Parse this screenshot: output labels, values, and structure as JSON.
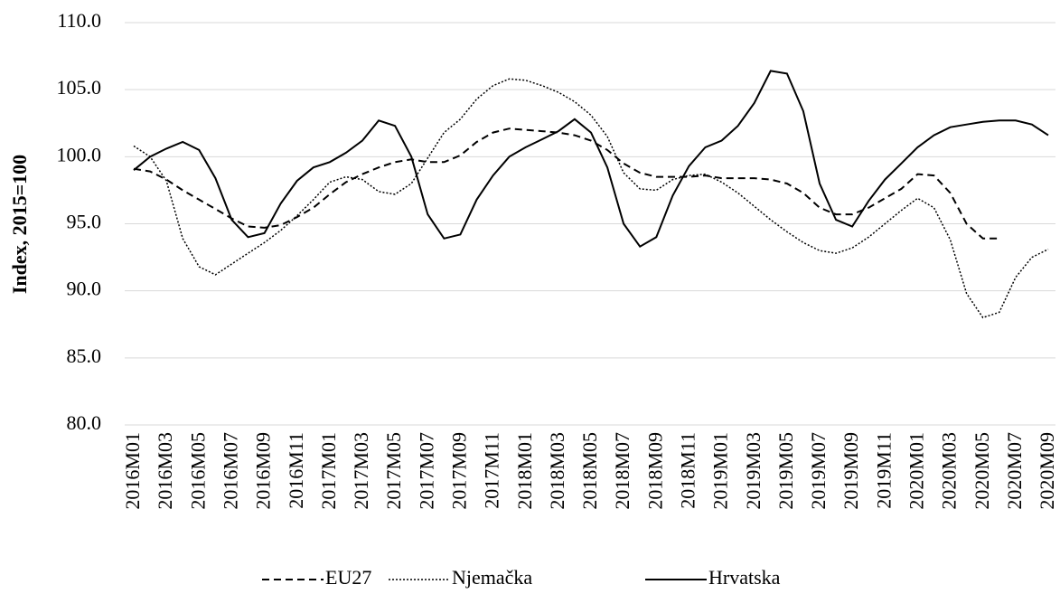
{
  "chart_data": {
    "type": "line",
    "y_label": "Index, 2015=100",
    "categories": [
      "2016M01",
      null,
      "2016M03",
      null,
      "2016M05",
      null,
      "2016M07",
      null,
      "2016M09",
      null,
      "2016M11",
      null,
      "2017M01",
      null,
      "2017M03",
      null,
      "2017M05",
      null,
      "2017M07",
      null,
      "2017M09",
      null,
      "2017M11",
      null,
      "2018M01",
      null,
      "2018M03",
      null,
      "2018M05",
      null,
      "2018M07",
      null,
      "2018M09",
      null,
      "2018M11",
      null,
      "2019M01",
      null,
      "2019M03",
      null,
      "2019M05",
      null,
      "2019M07",
      null,
      "2019M09",
      null,
      "2019M11",
      null,
      "2020M01",
      null,
      "2020M03",
      null,
      "2020M05",
      null,
      "2020M07",
      null,
      "2020M09"
    ],
    "series": [
      {
        "name": "EU27",
        "color": "#000000",
        "style": "dashed",
        "values": [
          99.1,
          98.9,
          98.3,
          97.5,
          96.8,
          96.1,
          95.4,
          94.8,
          94.7,
          94.9,
          95.5,
          96.2,
          97.2,
          98.1,
          98.7,
          99.2,
          99.6,
          99.8,
          99.6,
          99.6,
          100.1,
          101.1,
          101.8,
          102.1,
          102.0,
          101.9,
          101.8,
          101.6,
          101.2,
          100.5,
          99.5,
          98.8,
          98.5,
          98.5,
          98.5,
          98.6,
          98.4,
          98.4,
          98.4,
          98.3,
          98.0,
          97.3,
          96.2,
          95.7,
          95.7,
          96.2,
          96.9,
          97.6,
          98.7,
          98.6,
          97.3,
          95.0,
          93.9,
          93.9,
          null,
          null,
          null
        ]
      },
      {
        "name": "Njemačka",
        "color": "#000000",
        "style": "dotted",
        "values": [
          100.8,
          100.0,
          98.2,
          93.9,
          91.8,
          91.2,
          92.0,
          92.8,
          93.6,
          94.5,
          95.6,
          96.8,
          98.1,
          98.5,
          98.3,
          97.4,
          97.2,
          98.0,
          99.9,
          101.8,
          102.8,
          104.3,
          105.3,
          105.8,
          105.7,
          105.3,
          104.8,
          104.1,
          103.1,
          101.5,
          98.8,
          97.6,
          97.5,
          98.3,
          98.6,
          98.7,
          98.1,
          97.3,
          96.3,
          95.3,
          94.4,
          93.6,
          93.0,
          92.8,
          93.2,
          94.0,
          95.0,
          96.0,
          96.9,
          96.2,
          93.8,
          89.8,
          88.0,
          88.4,
          91.0,
          92.5,
          93.1
        ]
      },
      {
        "name": "Hrvatska",
        "color": "#000000",
        "style": "solid",
        "values": [
          99.0,
          100.0,
          100.6,
          101.1,
          100.5,
          98.4,
          95.3,
          94.0,
          94.3,
          96.5,
          98.2,
          99.2,
          99.6,
          100.3,
          101.2,
          102.7,
          102.3,
          100.0,
          95.7,
          93.9,
          94.2,
          96.8,
          98.6,
          100.0,
          100.7,
          101.3,
          101.9,
          102.8,
          101.8,
          99.2,
          95.0,
          93.3,
          94.0,
          97.1,
          99.3,
          100.7,
          101.2,
          102.3,
          104.0,
          106.4,
          106.2,
          103.4,
          98.0,
          95.3,
          94.8,
          96.7,
          98.3,
          99.5,
          100.7,
          101.6,
          102.2,
          102.4,
          102.6,
          102.7,
          102.7,
          102.4,
          101.6
        ]
      }
    ],
    "ylim": [
      80,
      110
    ],
    "yticks": [
      {
        "value": 80,
        "label": "80.0"
      },
      {
        "value": 85,
        "label": "85.0"
      },
      {
        "value": 90,
        "label": "90.0"
      },
      {
        "value": 95,
        "label": "95.0"
      },
      {
        "value": 100,
        "label": "100.0"
      },
      {
        "value": 105,
        "label": "105.0"
      },
      {
        "value": 110,
        "label": "110.0"
      }
    ],
    "grid": true,
    "legend": "bottom"
  }
}
